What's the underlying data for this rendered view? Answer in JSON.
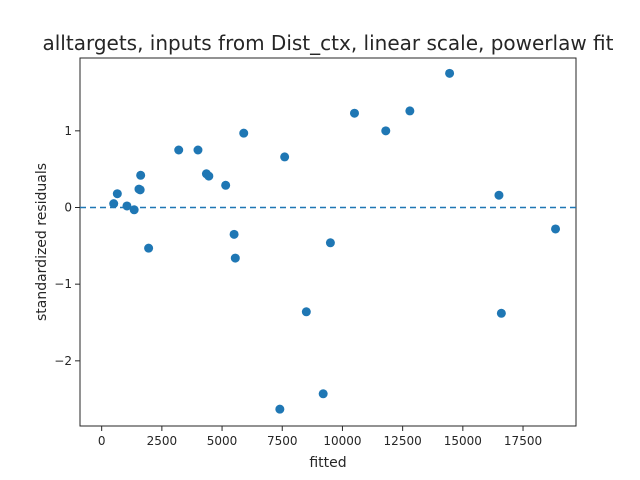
{
  "chart_data": {
    "type": "scatter",
    "title": "alltargets, inputs from Dist_ctx, linear scale, powerlaw fit",
    "xlabel": "fitted",
    "ylabel": "standardized residuals",
    "xlim": [
      -900,
      19700
    ],
    "ylim": [
      -2.85,
      1.95
    ],
    "xticks": [
      0,
      2500,
      5000,
      7500,
      10000,
      12500,
      15000,
      17500
    ],
    "xtick_labels": [
      "0",
      "2500",
      "5000",
      "7500",
      "10000",
      "12500",
      "15000",
      "17500"
    ],
    "yticks": [
      -2,
      -1,
      0,
      1
    ],
    "ytick_labels": [
      "−2",
      "−1",
      "0",
      "1"
    ],
    "reference_line": {
      "y": 0,
      "style": "dashed"
    },
    "marker_color": "#1f77b4",
    "points": [
      {
        "x": 500,
        "y": 0.05
      },
      {
        "x": 650,
        "y": 0.18
      },
      {
        "x": 1050,
        "y": 0.02
      },
      {
        "x": 1350,
        "y": -0.03
      },
      {
        "x": 1550,
        "y": 0.24
      },
      {
        "x": 1600,
        "y": 0.23
      },
      {
        "x": 1620,
        "y": 0.42
      },
      {
        "x": 1950,
        "y": -0.53
      },
      {
        "x": 3200,
        "y": 0.75
      },
      {
        "x": 4000,
        "y": 0.75
      },
      {
        "x": 4350,
        "y": 0.44
      },
      {
        "x": 4450,
        "y": 0.41
      },
      {
        "x": 5150,
        "y": 0.29
      },
      {
        "x": 5500,
        "y": -0.35
      },
      {
        "x": 5550,
        "y": -0.66
      },
      {
        "x": 5900,
        "y": 0.97
      },
      {
        "x": 7400,
        "y": -2.63
      },
      {
        "x": 7600,
        "y": 0.66
      },
      {
        "x": 8500,
        "y": -1.36
      },
      {
        "x": 9200,
        "y": -2.43
      },
      {
        "x": 9500,
        "y": -0.46
      },
      {
        "x": 10500,
        "y": 1.23
      },
      {
        "x": 11800,
        "y": 1.0
      },
      {
        "x": 12800,
        "y": 1.26
      },
      {
        "x": 14450,
        "y": 1.75
      },
      {
        "x": 16500,
        "y": 0.16
      },
      {
        "x": 16600,
        "y": -1.38
      },
      {
        "x": 18850,
        "y": -0.28
      }
    ]
  }
}
